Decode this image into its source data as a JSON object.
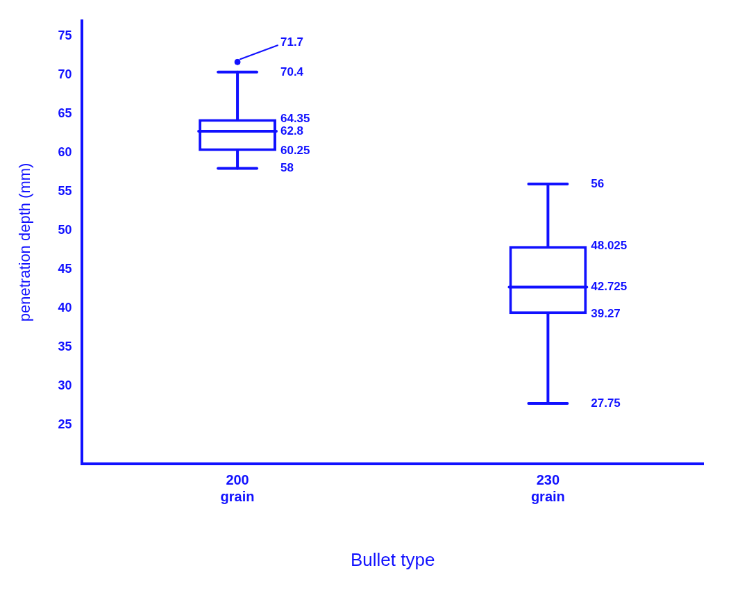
{
  "chart_data": {
    "type": "box",
    "xlabel": "Bullet type",
    "ylabel": "penetration depth (mm)",
    "categories": [
      "200 grain",
      "230 grain"
    ],
    "boxes": [
      {
        "low": 58,
        "q1": 60.25,
        "median": 62.8,
        "q3": 64.35,
        "high": 70.4,
        "outliers": [
          71.7
        ]
      },
      {
        "low": 27.75,
        "q1": 39.27,
        "median": 42.725,
        "q3": 48.025,
        "high": 56
      }
    ],
    "annotations": [
      "71.7",
      "70.4",
      "64.35",
      "62.8",
      "60.25",
      "58",
      "56",
      "48.025",
      "42.725",
      "39.27",
      "27.75"
    ],
    "color": "#1111ff",
    "ylim": [
      20,
      77
    ],
    "yticks": [
      25,
      30,
      35,
      40,
      45,
      50,
      55,
      60,
      65,
      70,
      75
    ],
    "grid": false
  }
}
